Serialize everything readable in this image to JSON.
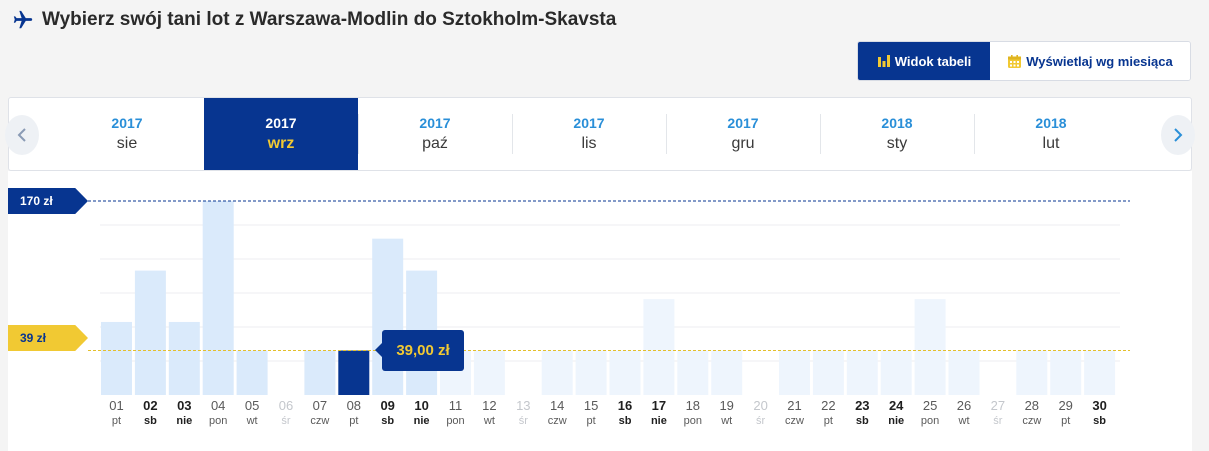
{
  "header": {
    "title": "Wybierz swój tani lot z Warszawa-Modlin do Sztokholm-Skavsta"
  },
  "view_toggle": {
    "table_label": "Widok tabeli",
    "month_label": "Wyświetlaj wg miesiąca"
  },
  "months": [
    {
      "year": "2017",
      "month": "sie",
      "active": false
    },
    {
      "year": "2017",
      "month": "wrz",
      "active": true
    },
    {
      "year": "2017",
      "month": "paź",
      "active": false
    },
    {
      "year": "2017",
      "month": "lis",
      "active": false
    },
    {
      "year": "2017",
      "month": "gru",
      "active": false
    },
    {
      "year": "2018",
      "month": "sty",
      "active": false
    },
    {
      "year": "2018",
      "month": "lut",
      "active": false
    }
  ],
  "price_lines": {
    "max_label": "170 zł",
    "min_label": "39 zł"
  },
  "tooltip": {
    "price": "39,00 zł"
  },
  "colors": {
    "primary": "#073590",
    "accent": "#f1c933",
    "link": "#2a8fd8",
    "bar_available": "#daeafb",
    "bar_unavailable": "#eef5fd",
    "bar_selected": "#073590"
  },
  "chart_data": {
    "type": "bar",
    "ylim": [
      0,
      170
    ],
    "min_line": 39,
    "max_line": 170,
    "days": [
      {
        "day": "01",
        "weekday": "pt",
        "value": 64,
        "state": "available"
      },
      {
        "day": "02",
        "weekday": "sb",
        "value": 109,
        "state": "available"
      },
      {
        "day": "03",
        "weekday": "nie",
        "value": 64,
        "state": "available"
      },
      {
        "day": "04",
        "weekday": "pon",
        "value": 170,
        "state": "available"
      },
      {
        "day": "05",
        "weekday": "wt",
        "value": 39,
        "state": "available"
      },
      {
        "day": "06",
        "weekday": "śr",
        "value": 0,
        "state": "disabled"
      },
      {
        "day": "07",
        "weekday": "czw",
        "value": 39,
        "state": "available"
      },
      {
        "day": "08",
        "weekday": "pt",
        "value": 39,
        "state": "selected"
      },
      {
        "day": "09",
        "weekday": "sb",
        "value": 137,
        "state": "available"
      },
      {
        "day": "10",
        "weekday": "nie",
        "value": 109,
        "state": "available"
      },
      {
        "day": "11",
        "weekday": "pon",
        "value": 39,
        "state": "unavailable"
      },
      {
        "day": "12",
        "weekday": "wt",
        "value": 39,
        "state": "unavailable"
      },
      {
        "day": "13",
        "weekday": "śr",
        "value": 0,
        "state": "disabled"
      },
      {
        "day": "14",
        "weekday": "czw",
        "value": 39,
        "state": "unavailable"
      },
      {
        "day": "15",
        "weekday": "pt",
        "value": 39,
        "state": "unavailable"
      },
      {
        "day": "16",
        "weekday": "sb",
        "value": 39,
        "state": "unavailable"
      },
      {
        "day": "17",
        "weekday": "nie",
        "value": 84,
        "state": "unavailable"
      },
      {
        "day": "18",
        "weekday": "pon",
        "value": 39,
        "state": "unavailable"
      },
      {
        "day": "19",
        "weekday": "wt",
        "value": 39,
        "state": "unavailable"
      },
      {
        "day": "20",
        "weekday": "śr",
        "value": 0,
        "state": "disabled"
      },
      {
        "day": "21",
        "weekday": "czw",
        "value": 39,
        "state": "unavailable"
      },
      {
        "day": "22",
        "weekday": "pt",
        "value": 39,
        "state": "unavailable"
      },
      {
        "day": "23",
        "weekday": "sb",
        "value": 39,
        "state": "unavailable"
      },
      {
        "day": "24",
        "weekday": "nie",
        "value": 39,
        "state": "unavailable"
      },
      {
        "day": "25",
        "weekday": "pon",
        "value": 84,
        "state": "unavailable"
      },
      {
        "day": "26",
        "weekday": "wt",
        "value": 39,
        "state": "unavailable"
      },
      {
        "day": "27",
        "weekday": "śr",
        "value": 0,
        "state": "disabled"
      },
      {
        "day": "28",
        "weekday": "czw",
        "value": 39,
        "state": "unavailable"
      },
      {
        "day": "29",
        "weekday": "pt",
        "value": 39,
        "state": "unavailable"
      },
      {
        "day": "30",
        "weekday": "sb",
        "value": 39,
        "state": "unavailable"
      }
    ]
  }
}
